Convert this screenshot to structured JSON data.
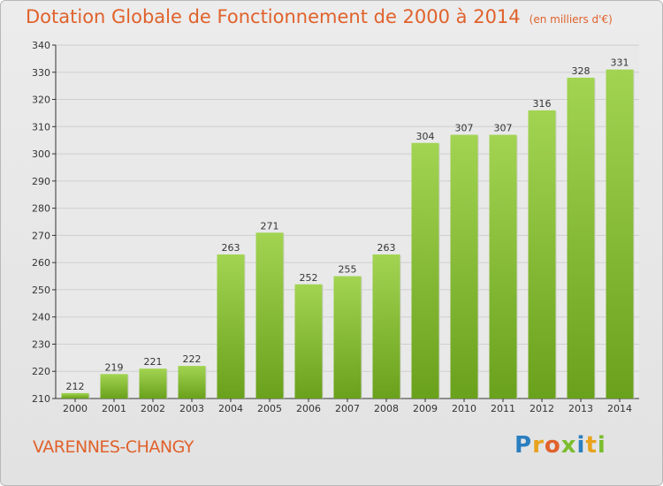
{
  "title": "Dotation Globale de Fonctionnement de 2000 à 2014",
  "unit": "(en milliers d'€)",
  "commune": "VARENNES-CHANGY",
  "logo": {
    "letters": [
      "P",
      "r",
      "o",
      "x",
      "i",
      "t",
      "i"
    ],
    "colors": [
      "#2a7fc0",
      "#e8a21c",
      "#e0622c",
      "#7bbd2e",
      "#2a7fc0",
      "#e8a21c",
      "#7bbd2e"
    ]
  },
  "colors": {
    "title": "#e0622c",
    "bar_light": "#a2d452",
    "bar_dark": "#6aa11c",
    "grid": "#cfcfcf",
    "axis": "#333333"
  },
  "chart_data": {
    "type": "bar",
    "categories": [
      "2000",
      "2001",
      "2002",
      "2003",
      "2004",
      "2005",
      "2006",
      "2007",
      "2008",
      "2009",
      "2010",
      "2011",
      "2012",
      "2013",
      "2014"
    ],
    "values": [
      212,
      219,
      221,
      222,
      263,
      271,
      252,
      255,
      263,
      304,
      307,
      307,
      316,
      328,
      331
    ],
    "ylim": [
      210,
      340
    ],
    "yticks": [
      210,
      220,
      230,
      240,
      250,
      260,
      270,
      280,
      290,
      300,
      310,
      320,
      330,
      340
    ],
    "grid": true
  }
}
